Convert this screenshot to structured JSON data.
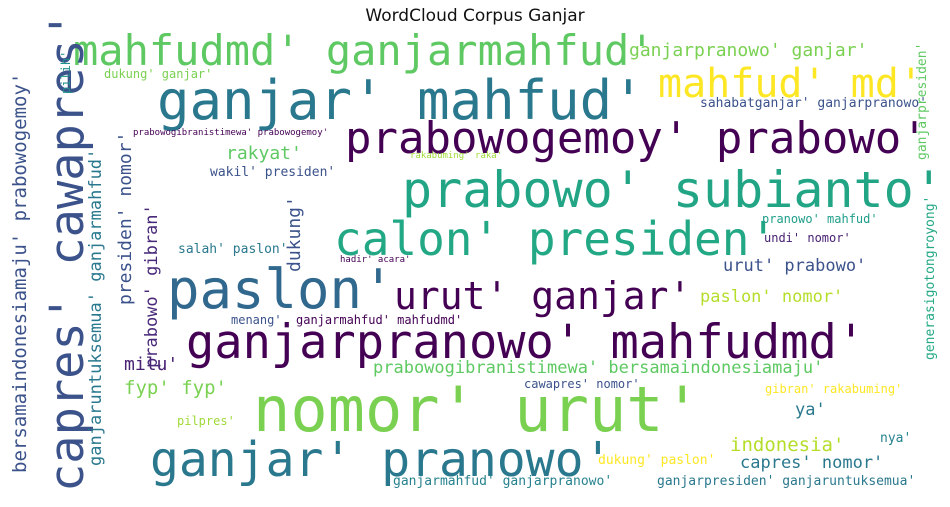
{
  "title": "WordCloud Corpus Ganjar",
  "words": [
    {
      "text": "mahfudmd' ganjarmahfud'",
      "color": "#5ec962"
    },
    {
      "text": "ganjar' mahfud'",
      "color": "#2a788e"
    },
    {
      "text": "mahfud' md'",
      "color": "#fde725"
    },
    {
      "text": "prabowogemoy' prabowo'",
      "color": "#440154"
    },
    {
      "text": "prabowo' subianto'",
      "color": "#21a585"
    },
    {
      "text": "calon' presiden'",
      "color": "#22a884"
    },
    {
      "text": "paslon'",
      "color": "#31688e"
    },
    {
      "text": "urut' ganjar'",
      "color": "#440154"
    },
    {
      "text": "ganjarpranowo' mahfudmd'",
      "color": "#440154"
    },
    {
      "text": "nomor' urut'",
      "color": "#7ad151"
    },
    {
      "text": "ganjar' pranowo'",
      "color": "#2a788e"
    },
    {
      "text": "capres' cawapres'",
      "color": "#3b528b"
    },
    {
      "text": "ganjarpranowo' ganjar'",
      "color": "#7ad151"
    },
    {
      "text": "dukung' ganjar'",
      "color": "#7ad151"
    },
    {
      "text": "sahabatganjar' ganjarpranowo'",
      "color": "#3b528b"
    },
    {
      "text": "prabowogibranistimewa' prabowogemoy'",
      "color": "#440154"
    },
    {
      "text": "rakyat'",
      "color": "#5ec962"
    },
    {
      "text": "rakabuming' raka'",
      "color": "#a0da39"
    },
    {
      "text": "wakil' presiden'",
      "color": "#3b528b"
    },
    {
      "text": "pranowo' mahfud'",
      "color": "#1f9e89"
    },
    {
      "text": "undi' nomor'",
      "color": "#482173"
    },
    {
      "text": "salah' paslon'",
      "color": "#2a788e"
    },
    {
      "text": "hadir' acara'",
      "color": "#440154"
    },
    {
      "text": "urut' prabowo'",
      "color": "#3b528b"
    },
    {
      "text": "paslon' nomor'",
      "color": "#b5de2b"
    },
    {
      "text": "menang'",
      "color": "#3b528b"
    },
    {
      "text": "ganjarmahfud' mahfudmd'",
      "color": "#440154"
    },
    {
      "text": "milu'",
      "color": "#482173"
    },
    {
      "text": "prabowogibranistimewa' bersamaindonesiamaju'",
      "color": "#5ec962"
    },
    {
      "text": "fyp' fyp'",
      "color": "#7ad151"
    },
    {
      "text": "cawapres' nomor'",
      "color": "#3b528b"
    },
    {
      "text": "gibran' rakabuming'",
      "color": "#fde725"
    },
    {
      "text": "ya'",
      "color": "#2a788e"
    },
    {
      "text": "pilpres'",
      "color": "#a0da39"
    },
    {
      "text": "indonesia'",
      "color": "#b5de2b"
    },
    {
      "text": "nya'",
      "color": "#26828e"
    },
    {
      "text": "capres' nomor'",
      "color": "#2a788e"
    },
    {
      "text": "dukung' paslon'",
      "color": "#fde725"
    },
    {
      "text": "ganjarmahfud' ganjarpranowo'",
      "color": "#26828e"
    },
    {
      "text": "ganjarpresiden' ganjaruntuksemua'",
      "color": "#2a788e"
    },
    {
      "text": "bersamaindonesiamaju' prabowogemoy'",
      "color": "#3b528b"
    },
    {
      "text": "ganjaruntuksemua' ganjarmahfud'",
      "color": "#2a788e"
    },
    {
      "text": "pilih'",
      "color": "#21918c"
    },
    {
      "text": "presiden' nomor'",
      "color": "#3b528b"
    },
    {
      "text": "prabowo' gibran'",
      "color": "#482878"
    },
    {
      "text": "dukung'",
      "color": "#3b528b"
    },
    {
      "text": "ganjarpresiden'",
      "color": "#5ec962"
    },
    {
      "text": "generasigotongroyong'",
      "color": "#22a884"
    }
  ]
}
